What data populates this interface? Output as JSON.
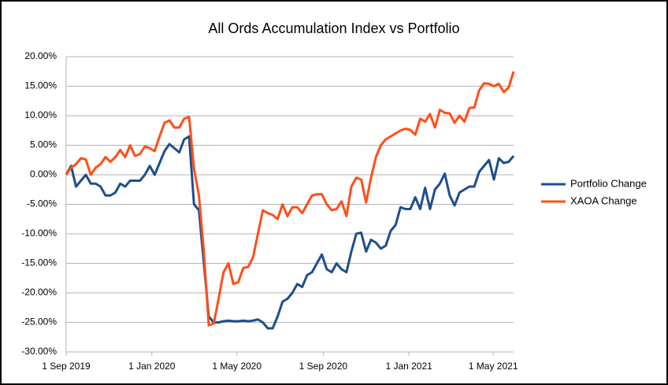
{
  "chart_data": {
    "type": "line",
    "title": "All Ords Accumulation Index vs Portfolio",
    "x": [
      "2019-09-01",
      "2019-09-08",
      "2019-09-15",
      "2019-09-22",
      "2019-09-29",
      "2019-10-06",
      "2019-10-13",
      "2019-10-20",
      "2019-10-27",
      "2019-11-03",
      "2019-11-10",
      "2019-11-17",
      "2019-11-24",
      "2019-12-01",
      "2019-12-08",
      "2019-12-15",
      "2019-12-22",
      "2019-12-29",
      "2020-01-05",
      "2020-01-12",
      "2020-01-19",
      "2020-01-26",
      "2020-02-02",
      "2020-02-09",
      "2020-02-16",
      "2020-02-23",
      "2020-03-01",
      "2020-03-08",
      "2020-03-15",
      "2020-03-22",
      "2020-03-29",
      "2020-04-05",
      "2020-04-12",
      "2020-04-19",
      "2020-04-26",
      "2020-05-03",
      "2020-05-10",
      "2020-05-17",
      "2020-05-24",
      "2020-05-31",
      "2020-06-07",
      "2020-06-14",
      "2020-06-21",
      "2020-06-28",
      "2020-07-05",
      "2020-07-12",
      "2020-07-19",
      "2020-07-26",
      "2020-08-02",
      "2020-08-09",
      "2020-08-16",
      "2020-08-23",
      "2020-08-30",
      "2020-09-06",
      "2020-09-13",
      "2020-09-20",
      "2020-09-27",
      "2020-10-04",
      "2020-10-11",
      "2020-10-18",
      "2020-10-25",
      "2020-11-01",
      "2020-11-08",
      "2020-11-15",
      "2020-11-22",
      "2020-11-29",
      "2020-12-06",
      "2020-12-13",
      "2020-12-20",
      "2020-12-27",
      "2021-01-03",
      "2021-01-10",
      "2021-01-17",
      "2021-01-24",
      "2021-01-31",
      "2021-02-07",
      "2021-02-14",
      "2021-02-21",
      "2021-02-28",
      "2021-03-07",
      "2021-03-14",
      "2021-03-21",
      "2021-03-28",
      "2021-04-04",
      "2021-04-11",
      "2021-04-18",
      "2021-04-25",
      "2021-05-02",
      "2021-05-09",
      "2021-05-16",
      "2021-05-23",
      "2021-05-30"
    ],
    "series": [
      {
        "name": "Portfolio Change",
        "color": "#1f4e8c",
        "values": [
          0,
          1.5,
          -2,
          -1,
          0,
          -1.5,
          -1.5,
          -2,
          -3.5,
          -3.5,
          -3,
          -1.5,
          -2,
          -1,
          -1,
          -1,
          0,
          1.5,
          0,
          2,
          4,
          5.2,
          4.5,
          3.8,
          6,
          6.5,
          -5,
          -6,
          -15,
          -24,
          -25,
          -25,
          -24.8,
          -24.7,
          -24.8,
          -24.8,
          -24.7,
          -24.8,
          -24.7,
          -24.5,
          -25,
          -26,
          -26,
          -24,
          -21.5,
          -21,
          -20,
          -18.5,
          -19,
          -17,
          -16.5,
          -15,
          -13.5,
          -16,
          -16.5,
          -15,
          -16,
          -16.5,
          -13,
          -10,
          -9.8,
          -13,
          -11,
          -11.5,
          -12.5,
          -12,
          -9.5,
          -8.5,
          -5.5,
          -5.8,
          -5.8,
          -3.8,
          -5.8,
          -2.2,
          -5.8,
          -2.5,
          -1.5,
          0.2,
          -3.5,
          -5.2,
          -3,
          -2.5,
          -2,
          -2,
          0.5,
          1.5,
          2.5,
          -0.8,
          2.8,
          2,
          2.2,
          3.2
        ]
      },
      {
        "name": "XAOA Change",
        "color": "#ff4e1a",
        "values": [
          0,
          1.2,
          1.8,
          2.8,
          2.6,
          0,
          1.2,
          1.8,
          3,
          2.2,
          3,
          4.2,
          3,
          5,
          3.2,
          3.5,
          4.8,
          4.5,
          4,
          6.5,
          8.8,
          9.2,
          8,
          8,
          9.5,
          9.8,
          1,
          -3.5,
          -13,
          -25.5,
          -25.2,
          -21,
          -16.5,
          -15,
          -18.5,
          -18.2,
          -15.8,
          -15.6,
          -14,
          -10,
          -6,
          -6.5,
          -6.8,
          -7.5,
          -5,
          -7,
          -5.5,
          -5.5,
          -6.5,
          -5,
          -3.5,
          -3.3,
          -3.3,
          -5,
          -6,
          -5.8,
          -4.5,
          -7,
          -2,
          -0.5,
          -0.8,
          -4.7,
          -0.5,
          3,
          5,
          6,
          6.5,
          7,
          7.5,
          7.8,
          7.6,
          6.8,
          9.5,
          9,
          10.3,
          8,
          11,
          10.5,
          10.4,
          8.8,
          10,
          9,
          11.3,
          11.4,
          14.3,
          15.5,
          15.4,
          15,
          15.4,
          14,
          14.8,
          17.5
        ]
      }
    ],
    "xlim": [
      "2019-09-01",
      "2021-05-30"
    ],
    "xticks": [
      {
        "value": "2019-09-01",
        "label": "1 Sep 2019"
      },
      {
        "value": "2020-01-01",
        "label": "1 Jan 2020"
      },
      {
        "value": "2020-05-01",
        "label": "1 May 2020"
      },
      {
        "value": "2020-09-01",
        "label": "1 Sep 2020"
      },
      {
        "value": "2021-01-01",
        "label": "1 Jan 2021"
      },
      {
        "value": "2021-05-01",
        "label": "1 May 2021"
      }
    ],
    "ylim": [
      -30,
      20
    ],
    "yticks": [
      {
        "value": -30,
        "label": "-30.00%"
      },
      {
        "value": -25,
        "label": "-25.00%"
      },
      {
        "value": -20,
        "label": "-20.00%"
      },
      {
        "value": -15,
        "label": "-15.00%"
      },
      {
        "value": -10,
        "label": "-10.00%"
      },
      {
        "value": -5,
        "label": "-5.00%"
      },
      {
        "value": 0,
        "label": "0.00%"
      },
      {
        "value": 5,
        "label": "5.00%"
      },
      {
        "value": 10,
        "label": "10.00%"
      },
      {
        "value": 15,
        "label": "15.00%"
      },
      {
        "value": 20,
        "label": "20.00%"
      }
    ],
    "grid": true,
    "legend": "right"
  }
}
